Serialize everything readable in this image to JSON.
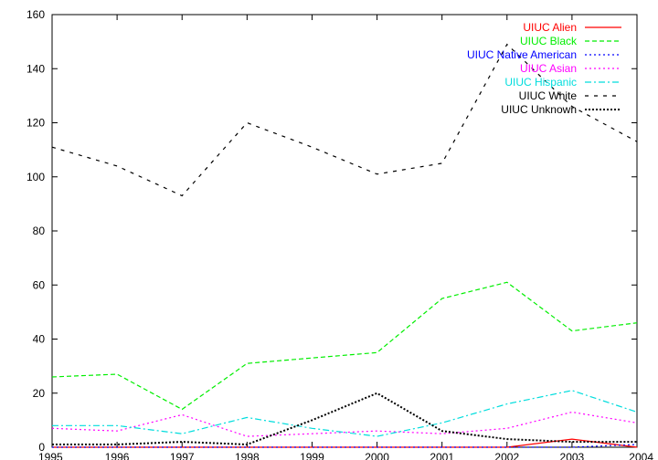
{
  "chart_data": {
    "type": "line",
    "title": "",
    "xlabel": "",
    "ylabel": "",
    "xlim": [
      1995,
      2004
    ],
    "ylim": [
      0,
      160
    ],
    "x": [
      1995,
      1996,
      1997,
      1998,
      1999,
      2000,
      2001,
      2002,
      2003,
      2004
    ],
    "x_ticks": [
      "1995",
      "1996",
      "1997",
      "1998",
      "1999",
      "2000",
      "2001",
      "2002",
      "2003",
      "2004"
    ],
    "y_ticks": [
      "0",
      "20",
      "40",
      "60",
      "80",
      "100",
      "120",
      "140",
      "160"
    ],
    "grid": false,
    "legend_position": "top-right",
    "series": [
      {
        "name": "UIUC Alien",
        "color": "#ff0000",
        "dash": "solid",
        "values": [
          0,
          0,
          0,
          0,
          0,
          0,
          0,
          0,
          3,
          0
        ]
      },
      {
        "name": "UIUC Black",
        "color": "#00ee00",
        "dash": "dashed",
        "values": [
          26,
          27,
          14,
          31,
          33,
          35,
          55,
          61,
          43,
          46
        ]
      },
      {
        "name": "UIUC Native American",
        "color": "#0000ff",
        "dash": "dotted",
        "values": [
          0,
          0,
          0,
          0,
          0,
          0,
          0,
          0,
          0,
          1
        ]
      },
      {
        "name": "UIUC Asian",
        "color": "#ff00ff",
        "dash": "dotted",
        "values": [
          7,
          6,
          12,
          4,
          5,
          6,
          5,
          7,
          13,
          9
        ]
      },
      {
        "name": "UIUC Hispanic",
        "color": "#00dddd",
        "dash": "dashdot",
        "values": [
          8,
          8,
          5,
          11,
          7,
          4,
          9,
          16,
          21,
          13
        ]
      },
      {
        "name": "UIUC White",
        "color": "#000000",
        "dash": "sparse-dashed",
        "values": [
          111,
          104,
          93,
          120,
          111,
          101,
          105,
          149,
          126,
          113
        ]
      },
      {
        "name": "UIUC Unknown",
        "color": "#000000",
        "dash": "dense-dotted",
        "values": [
          1,
          1,
          2,
          1,
          10,
          20,
          6,
          3,
          2,
          2
        ]
      }
    ]
  }
}
